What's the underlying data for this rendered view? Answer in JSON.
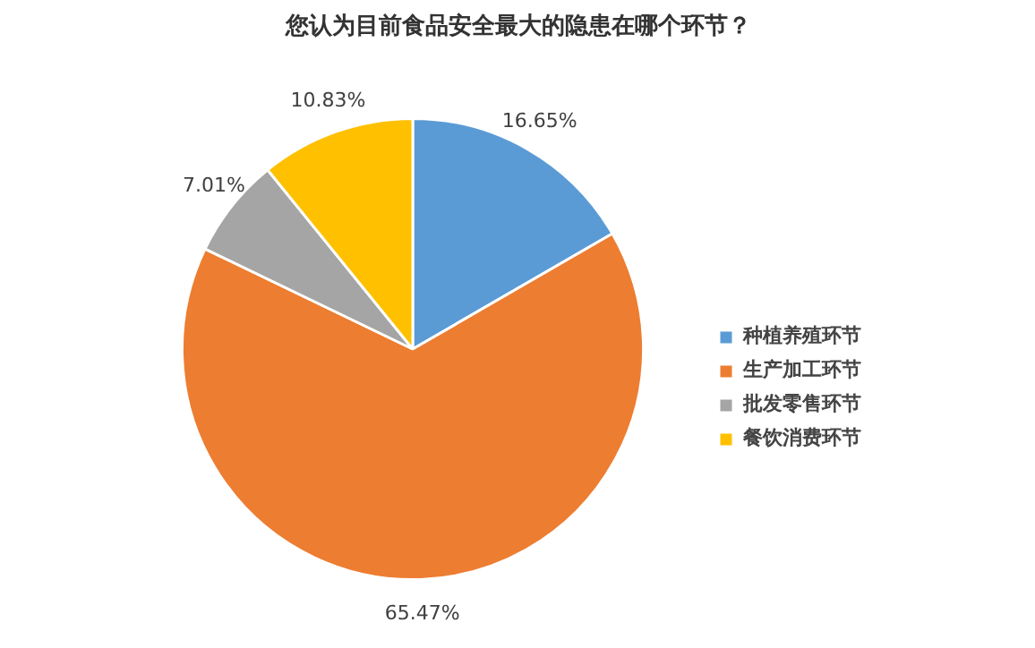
{
  "chart_data": {
    "type": "pie",
    "title": "您认为目前食品安全最大的隐患在哪个环节？",
    "categories": [
      "种植养殖环节",
      "生产加工环节",
      "批发零售环节",
      "餐饮消费环节"
    ],
    "values": [
      16.65,
      65.47,
      7.01,
      10.83
    ],
    "colors": [
      "#5b9bd5",
      "#ed7d31",
      "#a5a5a5",
      "#ffc000"
    ],
    "value_labels": [
      "16.65%",
      "65.47%",
      "7.01%",
      "10.83%"
    ],
    "legend": "right"
  }
}
